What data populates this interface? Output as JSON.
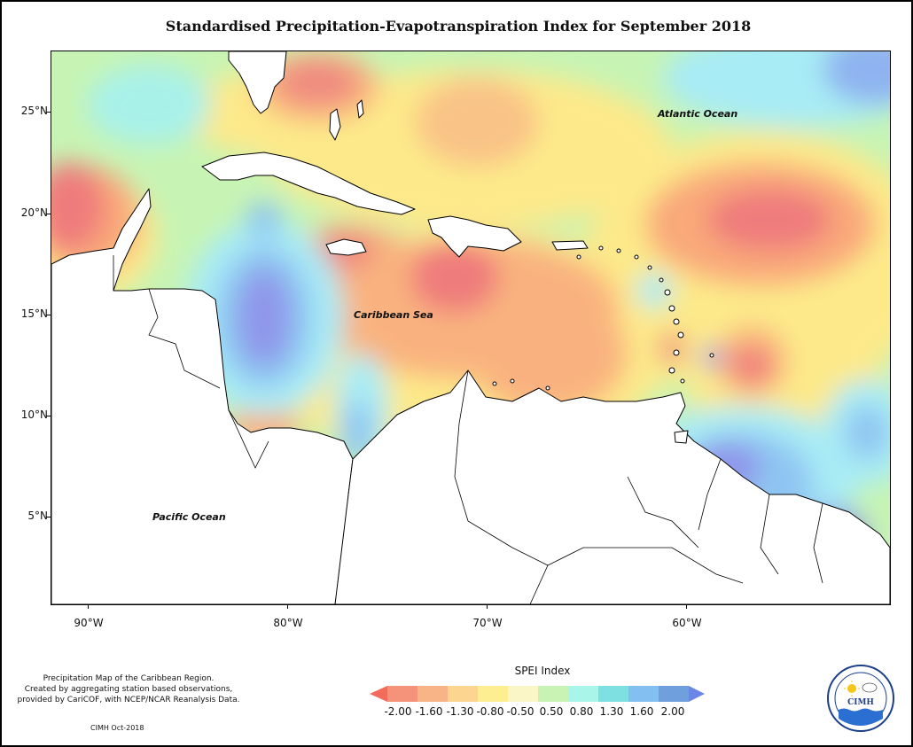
{
  "title": "Standardised Precipitation-Evapotranspiration Index for September 2018",
  "axes": {
    "lat_labels": [
      "25°N",
      "20°N",
      "15°N",
      "10°N",
      "5°N"
    ],
    "lon_labels": [
      "90°W",
      "80°W",
      "70°W",
      "60°W"
    ]
  },
  "labels": {
    "atlantic": "Atlantic Ocean",
    "caribbean": "Caribbean Sea",
    "pacific": "Pacific Ocean"
  },
  "caption": [
    "Precipitation Map of the Caribbean Region.",
    "Created by aggregating station based observations,",
    "provided by CariCOF, with NCEP/NCAR Reanalysis Data."
  ],
  "credit": "CIMH Oct-2018",
  "legend": {
    "title": "SPEI Index",
    "ticks": [
      "-2.00",
      "-1.60",
      "-1.30",
      "-0.80",
      "-0.50",
      "0.50",
      "0.80",
      "1.30",
      "1.60",
      "2.00"
    ],
    "colors": [
      "#f26c5b",
      "#f4927a",
      "#f8b486",
      "#fcd590",
      "#fdee91",
      "#fbf6c6",
      "#c8f3b4",
      "#a9f5ea",
      "#7fe0e2",
      "#83bff0",
      "#6fa0dd",
      "#6a86e8"
    ]
  },
  "logo": {
    "text": "CIMH"
  }
}
